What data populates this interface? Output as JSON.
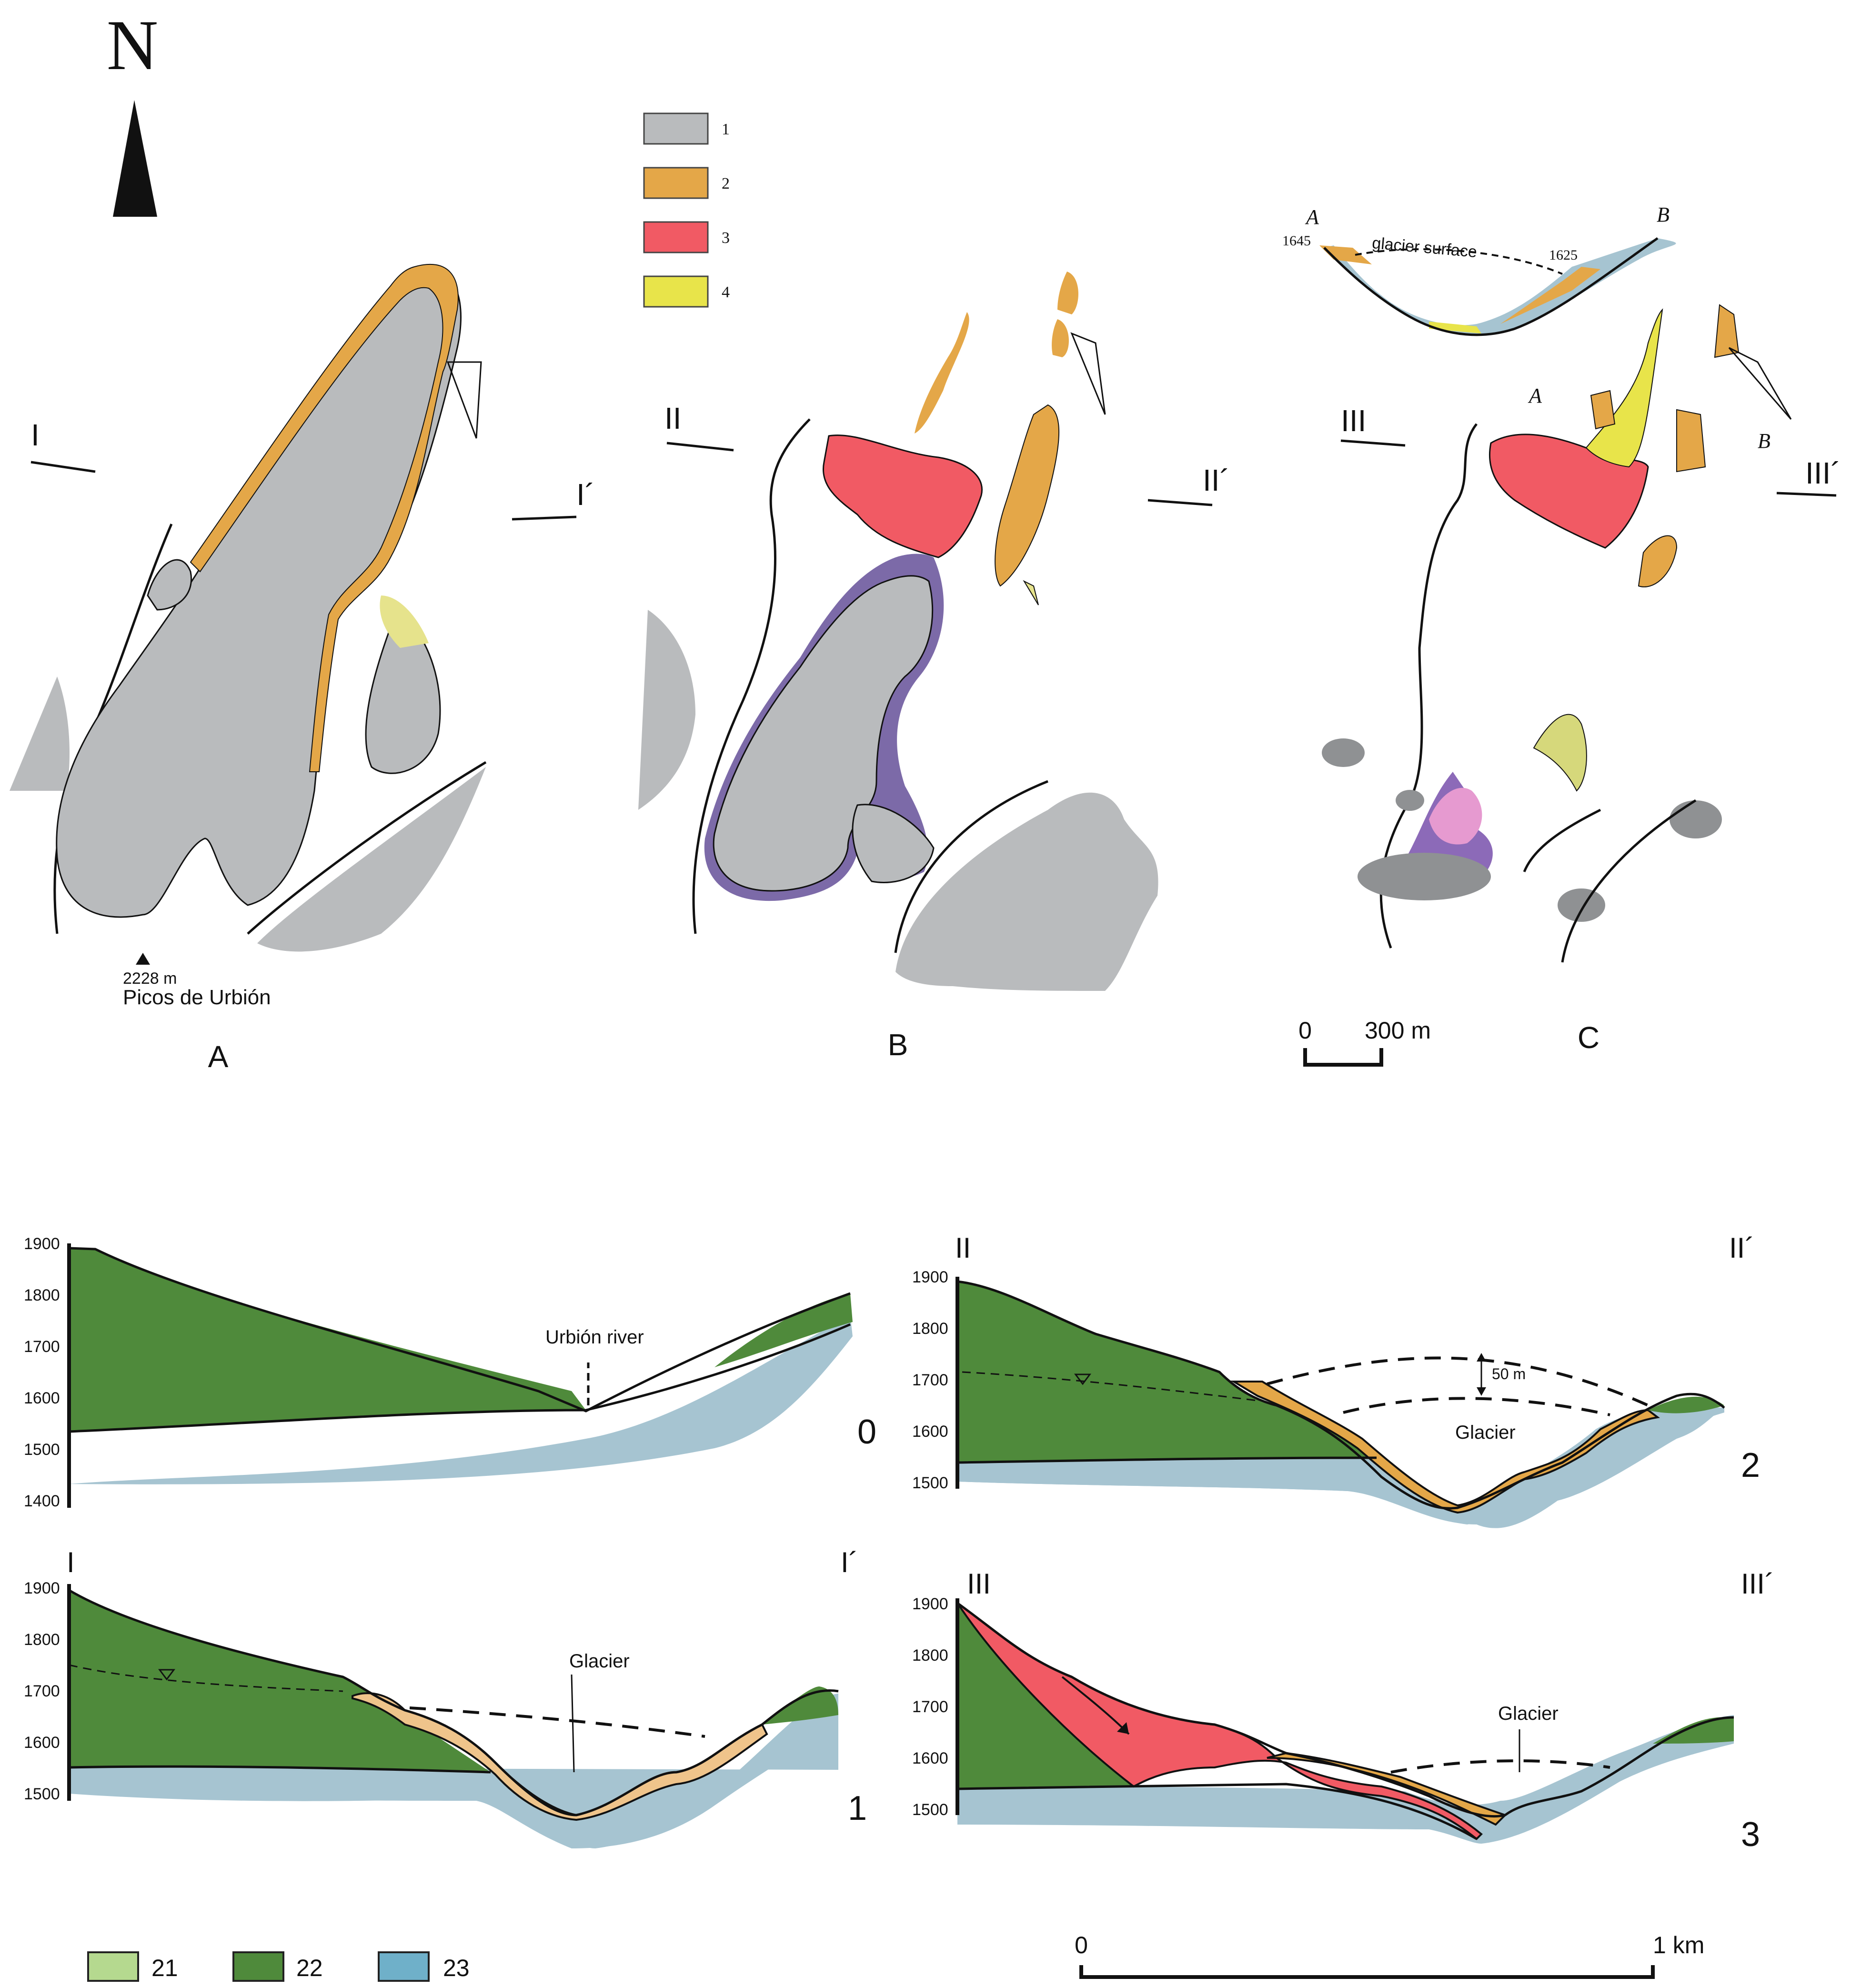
{
  "north": "N",
  "legend_map": [
    {
      "num": "1",
      "color": "#b9bbbd"
    },
    {
      "num": "2",
      "color": "#e4a748"
    },
    {
      "num": "3",
      "color": "#f15a64"
    },
    {
      "num": "4",
      "color": "#e8e44a"
    }
  ],
  "panels": {
    "A": "A",
    "B": "B",
    "C": "C"
  },
  "map_section_labels": {
    "I": "I",
    "I_prime": "I´",
    "II": "II",
    "II_prime": "II´",
    "III": "III",
    "III_prime": "III´"
  },
  "peak": {
    "elevation": "2228 m",
    "name": "Picos de Urbión"
  },
  "inset": {
    "left_label": "A",
    "right_label": "B",
    "left_elev": "1645",
    "right_elev": "1625",
    "surface": "glacier surface"
  },
  "map_points": {
    "a": "A",
    "b": "B"
  },
  "map_scale": {
    "zero": "0",
    "end": "300 m"
  },
  "profiles": [
    {
      "number": "0",
      "left_label": "",
      "right_label": "",
      "y_ticks": [
        "1900",
        "1800",
        "1700",
        "1600",
        "1500",
        "1400"
      ],
      "annotations": [
        "Urbión river"
      ]
    },
    {
      "number": "1",
      "left_label": "I",
      "right_label": "I´",
      "y_ticks": [
        "1900",
        "1800",
        "1700",
        "1600",
        "1500"
      ],
      "annotations": [
        "Glacier"
      ]
    },
    {
      "number": "2",
      "left_label": "II",
      "right_label": "II´",
      "y_ticks": [
        "1900",
        "1800",
        "1700",
        "1600",
        "1500"
      ],
      "annotations": [
        "Glacier",
        "50 m"
      ]
    },
    {
      "number": "3",
      "left_label": "III",
      "right_label": "III´",
      "y_ticks": [
        "1900",
        "1800",
        "1700",
        "1600",
        "1500"
      ],
      "annotations": [
        "Glacier"
      ]
    }
  ],
  "legend_profile": [
    {
      "num": "21",
      "color": "#b5d98f"
    },
    {
      "num": "22",
      "color": "#4f8a3b"
    },
    {
      "num": "23",
      "color": "#6fb0c9"
    }
  ],
  "profile_scale": {
    "zero": "0",
    "end": "1 km"
  },
  "colors": {
    "rock": "#b9bbbd",
    "till": "#e4a748",
    "rock_glacier": "#f15a64",
    "yellow_deposit": "#e8e44a",
    "purple": "#7c6aa8",
    "pink": "#e69ad0",
    "dark_gray": "#8f9193",
    "profile_green": "#4f8a3b",
    "profile_blue": "#a6c4d1",
    "profile_tan": "#efc48b"
  }
}
